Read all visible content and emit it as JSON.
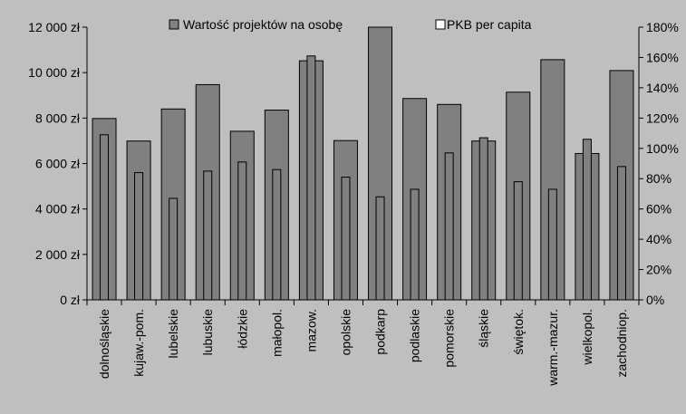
{
  "chart_data": {
    "type": "bar",
    "categories": [
      "dolnośląskie",
      "kujaw.-pom.",
      "lubelskie",
      "lubuskie",
      "łódzkie",
      "małopol.",
      "mazow.",
      "opolskie",
      "podkarp",
      "podlaskie",
      "pomorskie",
      "śląskie",
      "świętok.",
      "warm.-mazur.",
      "wielkopol.",
      "zachodniop."
    ],
    "series": [
      {
        "name": "Wartość projektów na osobę",
        "axis": "left",
        "fill": "#808080",
        "values": [
          7980,
          6990,
          8400,
          9470,
          7420,
          8350,
          10520,
          7010,
          12000,
          8860,
          8600,
          6990,
          9140,
          10570,
          6440,
          10090
        ]
      },
      {
        "name": "PKB per capita",
        "axis": "right",
        "fill": "#808080",
        "values": [
          109,
          84,
          67,
          85,
          91,
          86,
          161,
          81,
          68,
          73,
          97,
          107,
          78,
          73,
          106,
          88
        ]
      }
    ],
    "y_left": {
      "ylim": [
        0,
        12000
      ],
      "ticks": [
        0,
        2000,
        4000,
        6000,
        8000,
        10000,
        12000
      ],
      "tick_labels": [
        "0 zł",
        "2 000 zł",
        "4 000 zł",
        "6 000 zł",
        "8 000 zł",
        "10 000 zł",
        "12 000 zł"
      ]
    },
    "y_right": {
      "ylim": [
        0,
        180
      ],
      "ticks": [
        0,
        20,
        40,
        60,
        80,
        100,
        120,
        140,
        160,
        180
      ],
      "tick_labels": [
        "0%",
        "20%",
        "40%",
        "60%",
        "80%",
        "100%",
        "120%",
        "140%",
        "160%",
        "180%"
      ]
    },
    "grid": false,
    "legend_position": "top",
    "colors": {
      "background": "#bfbfbf",
      "bar": "#808080",
      "outline": "#000000"
    }
  }
}
